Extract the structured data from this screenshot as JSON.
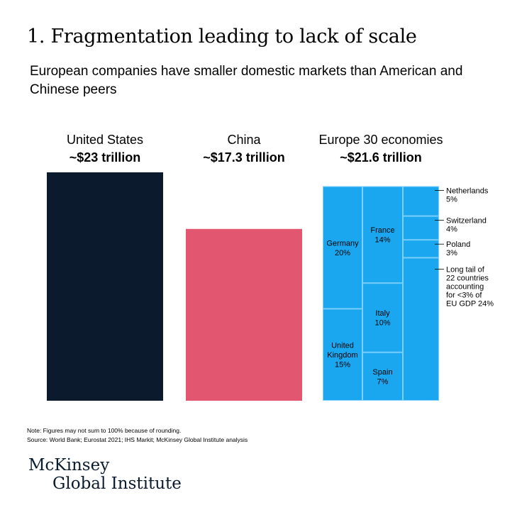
{
  "title": "1. Fragmentation leading to lack of scale",
  "subtitle": "European companies have smaller domestic markets than American and Chinese peers",
  "colors": {
    "us": "#0b1a2c",
    "china": "#e3566f",
    "europe": "#1aa7f0",
    "cell_border": "#7fd0fb"
  },
  "chart_data": {
    "type": "bar",
    "unit": "trillion",
    "categories": [
      "United States",
      "China",
      "Europe 30 economies"
    ],
    "values": [
      23,
      17.3,
      21.6
    ],
    "value_labels": [
      "~$23 trillion",
      "~$17.3 trillion",
      "~$21.6 trillion"
    ],
    "europe_breakdown": [
      {
        "label_lines": [
          "Germany",
          "20%"
        ],
        "percent": 20,
        "column": 0
      },
      {
        "label_lines": [
          "United",
          "Kingdom",
          "15%"
        ],
        "percent": 15,
        "column": 0
      },
      {
        "label_lines": [
          "France",
          "14%"
        ],
        "percent": 14,
        "column": 1
      },
      {
        "label_lines": [
          "Italy",
          "10%"
        ],
        "percent": 10,
        "column": 1
      },
      {
        "label_lines": [
          "Spain",
          "7%"
        ],
        "percent": 7,
        "column": 1
      },
      {
        "label_lines": [
          "Netherlands",
          "5%"
        ],
        "percent": 5,
        "column": 2
      },
      {
        "label_lines": [
          "Switzerland",
          "4%"
        ],
        "percent": 4,
        "column": 2
      },
      {
        "label_lines": [
          "Poland",
          "3%"
        ],
        "percent": 3,
        "column": 2
      },
      {
        "label_lines": [
          "Long tail of",
          "22 countries",
          "accounting",
          "for <3% of",
          "EU GDP 24%"
        ],
        "percent": 24,
        "column": 2
      }
    ]
  },
  "note": "Note: Figures may not sum to 100% because of rounding.",
  "source": "Source: World Bank; Eurostat 2021; IHS Markit; McKinsey Global Institute analysis",
  "logo": {
    "line1": "McKinsey",
    "line2": "Global Institute"
  }
}
